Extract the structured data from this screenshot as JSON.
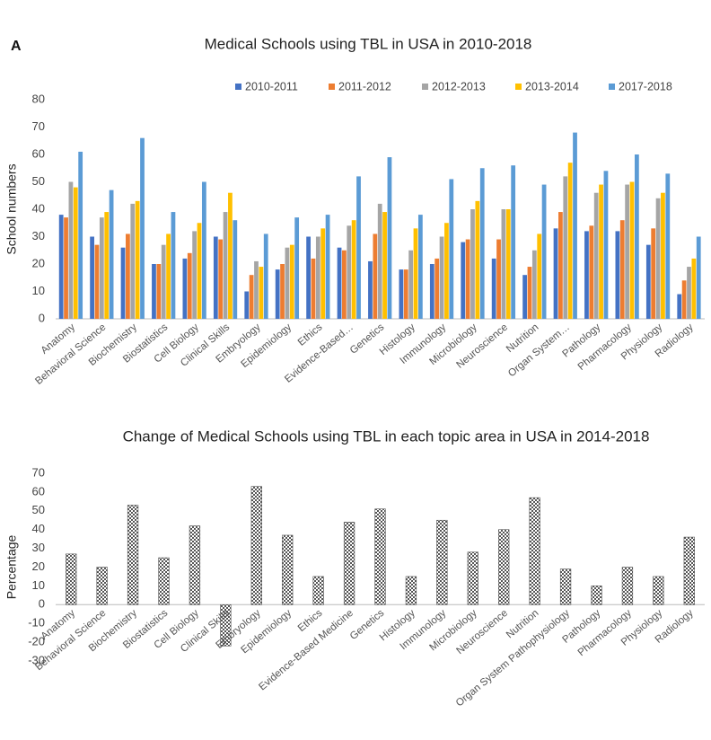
{
  "chart_data": [
    {
      "type": "grouped_bar",
      "panel_label": "A",
      "title": "Medical Schools using TBL in USA  in 2010-2018",
      "y_label": "School numbers",
      "categories": [
        "Anatomy",
        "Behavioral Science",
        "Biochemistry",
        "Biostatistics",
        "Cell Biology",
        "Clinical Skills",
        "Embryology",
        "Epidemiology",
        "Ethics",
        "Evidence-Based…",
        "Genetics",
        "Histology",
        "Immunology",
        "Microbiology",
        "Neuroscience",
        "Nutrition",
        "Organ System…",
        "Pathology",
        "Pharmacology",
        "Physiology",
        "Radiology"
      ],
      "series": [
        {
          "name": "2010-2011",
          "color": "#4472c4",
          "values": [
            38,
            30,
            26,
            20,
            22,
            30,
            10,
            18,
            30,
            26,
            21,
            18,
            20,
            28,
            22,
            16,
            33,
            32,
            32,
            27,
            9
          ]
        },
        {
          "name": "2011-2012",
          "color": "#ed7d31",
          "values": [
            37,
            27,
            31,
            20,
            24,
            29,
            16,
            20,
            22,
            25,
            31,
            18,
            22,
            29,
            29,
            19,
            39,
            34,
            36,
            33,
            14
          ]
        },
        {
          "name": "2012-2013",
          "color": "#a5a5a5",
          "values": [
            50,
            37,
            42,
            27,
            32,
            39,
            21,
            26,
            30,
            34,
            42,
            25,
            30,
            40,
            40,
            25,
            52,
            46,
            49,
            44,
            19
          ]
        },
        {
          "name": "2013-2014",
          "color": "#ffc000",
          "values": [
            48,
            39,
            43,
            31,
            35,
            46,
            19,
            27,
            33,
            36,
            39,
            33,
            35,
            43,
            40,
            31,
            57,
            49,
            50,
            46,
            22
          ]
        },
        {
          "name": "2017-2018",
          "color": "#5b9bd5",
          "values": [
            61,
            47,
            66,
            39,
            50,
            36,
            31,
            37,
            38,
            52,
            59,
            38,
            51,
            55,
            56,
            49,
            68,
            54,
            60,
            53,
            30
          ]
        }
      ],
      "ylim": [
        0,
        80
      ],
      "yticks": [
        0,
        10,
        20,
        30,
        40,
        50,
        60,
        70,
        80
      ],
      "grid": false,
      "legend": "top-right"
    },
    {
      "type": "bar",
      "title": "Change of Medical Schools using TBL in each topic area in USA in 2014-2018",
      "y_label": "Percentage",
      "categories": [
        "Anatomy",
        "Behavioral Science",
        "Biochemistry",
        "Biostatistics",
        "Cell Biology",
        "Clinical Skills",
        "Embryology",
        "Epidemiology",
        "Ethics",
        "Evidence-Based Medicine",
        "Genetics",
        "Histology",
        "Immunology",
        "Microbiology",
        "Neuroscience",
        "Nutrition",
        "Organ System Pathophysiology",
        "Pathology",
        "Pharmacology",
        "Physiology",
        "Radiology"
      ],
      "values": [
        27,
        20,
        53,
        25,
        42,
        -22,
        63,
        37,
        15,
        44,
        51,
        15,
        45,
        28,
        40,
        57,
        19,
        10,
        20,
        15,
        36
      ],
      "color": "#555555",
      "pattern": "checker",
      "ylim": [
        -30,
        70
      ],
      "yticks": [
        -30,
        -20,
        -10,
        0,
        10,
        20,
        30,
        40,
        50,
        60,
        70
      ],
      "grid": false
    }
  ]
}
